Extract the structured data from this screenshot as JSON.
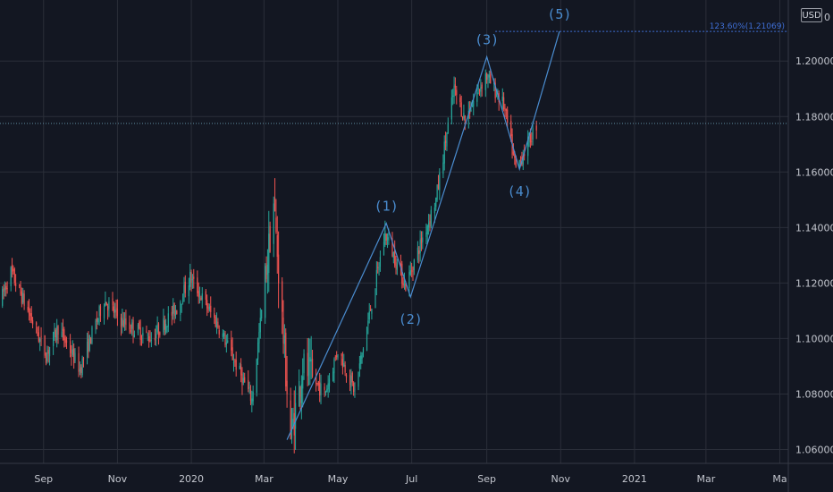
{
  "chart_data": {
    "type": "candlestick",
    "title": "",
    "xlabel": "",
    "ylabel": "",
    "currency": "USD",
    "top_axis_fragment": "0",
    "ylim": [
      1.055,
      1.222
    ],
    "grid": true,
    "y_ticks": [
      "1.20000",
      "1.18000",
      "1.16000",
      "1.14000",
      "1.12000",
      "1.10000",
      "1.08000",
      "1.06000"
    ],
    "y_tick_values": [
      1.2,
      1.18,
      1.16,
      1.14,
      1.12,
      1.1,
      1.08,
      1.06
    ],
    "x_ticks": [
      "Sep",
      "Nov",
      "2020",
      "Mar",
      "May",
      "Jul",
      "Sep",
      "Nov",
      "2021",
      "Mar",
      "Ma"
    ],
    "x_tick_dates": [
      "2019-09-01",
      "2019-11-01",
      "2020-01-01",
      "2020-03-01",
      "2020-05-01",
      "2020-07-01",
      "2020-09-01",
      "2020-11-01",
      "2021-01-01",
      "2021-03-01",
      "2021-05-01"
    ],
    "x_range": [
      "2019-07-27",
      "2021-05-08"
    ],
    "current_price": 1.1775,
    "colors": {
      "up": "#26a69a",
      "down": "#ef5350",
      "wave": "#4a8ccf",
      "fib": "#3f6fd6",
      "grid": "#2a2e39",
      "background": "#131722"
    },
    "anchor_path": [
      [
        "2019-07-27",
        1.113
      ],
      [
        "2019-08-05",
        1.124
      ],
      [
        "2019-08-22",
        1.107
      ],
      [
        "2019-09-03",
        1.094
      ],
      [
        "2019-09-13",
        1.104
      ],
      [
        "2019-10-01",
        1.089
      ],
      [
        "2019-10-21",
        1.114
      ],
      [
        "2019-11-05",
        1.106
      ],
      [
        "2019-11-29",
        1.1
      ],
      [
        "2019-12-20",
        1.111
      ],
      [
        "2019-12-31",
        1.122
      ],
      [
        "2020-01-24",
        1.104
      ],
      [
        "2020-02-20",
        1.078
      ],
      [
        "2020-03-09",
        1.149
      ],
      [
        "2020-03-23",
        1.064
      ],
      [
        "2020-04-02",
        1.09
      ],
      [
        "2020-04-20",
        1.08
      ],
      [
        "2020-05-01",
        1.096
      ],
      [
        "2020-05-15",
        1.081
      ],
      [
        "2020-06-09",
        1.138
      ],
      [
        "2020-06-26",
        1.119
      ],
      [
        "2020-07-21",
        1.15
      ],
      [
        "2020-08-05",
        1.19
      ],
      [
        "2020-08-14",
        1.179
      ],
      [
        "2020-08-31",
        1.195
      ],
      [
        "2020-09-15",
        1.184
      ],
      [
        "2020-09-25",
        1.161
      ],
      [
        "2020-10-12",
        1.177
      ]
    ],
    "series": [
      {
        "name": "",
        "type": "elliott-wave",
        "points": [
          {
            "label": "",
            "date": "2020-03-20",
            "value": 1.0635
          },
          {
            "label": "(1)",
            "date": "2020-06-10",
            "value": 1.1415
          },
          {
            "label": "(2)",
            "date": "2020-06-30",
            "value": 1.115
          },
          {
            "label": "(3)",
            "date": "2020-09-01",
            "value": 1.2015
          },
          {
            "label": "(4)",
            "date": "2020-09-28",
            "value": 1.161
          },
          {
            "label": "(5)",
            "date": "2020-10-31",
            "value": 1.2107
          }
        ]
      }
    ],
    "annotations": [
      {
        "type": "fib-extension",
        "label": "123.60%(1.21069)",
        "value": 1.21069,
        "from": "2020-09-08",
        "to": "2021-05-08"
      }
    ]
  }
}
